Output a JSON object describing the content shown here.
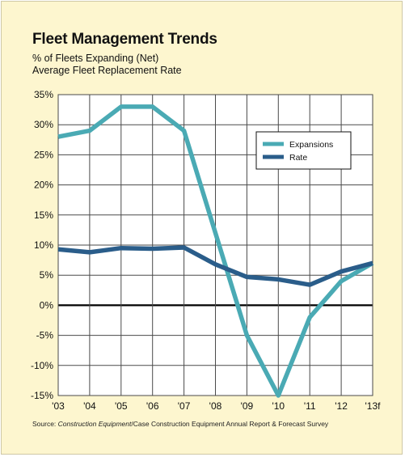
{
  "chart_data": {
    "type": "line",
    "title": "Fleet Management Trends",
    "subtitle_lines": [
      "% of Fleets Expanding (Net)",
      "Average Fleet Replacement Rate"
    ],
    "source_prefix": "Source: ",
    "source_italic": "Construction Equipment",
    "source_rest": "/Case Construction Equipment Annual Report & Forecast Survey",
    "categories": [
      "'03",
      "'04",
      "'05",
      "'06",
      "'07",
      "'08",
      "'09",
      "'10",
      "'11",
      "'12",
      "'13f"
    ],
    "yticks": [
      "35%",
      "30%",
      "25%",
      "20%",
      "15%",
      "10%",
      "5%",
      "0%",
      "-5%",
      "-10%",
      "-15%"
    ],
    "ylim": [
      -15,
      35
    ],
    "grid": true,
    "legend_position": "upper-right",
    "series": [
      {
        "name": "Expansions",
        "color": "#4aaab4",
        "values": [
          28,
          29,
          33,
          33,
          29,
          12,
          -5,
          -15,
          -2,
          4,
          7
        ]
      },
      {
        "name": "Rate",
        "color": "#2a5d8a",
        "values": [
          9.3,
          8.8,
          9.5,
          9.4,
          9.6,
          6.8,
          4.7,
          4.3,
          3.4,
          5.6,
          7
        ]
      }
    ]
  }
}
